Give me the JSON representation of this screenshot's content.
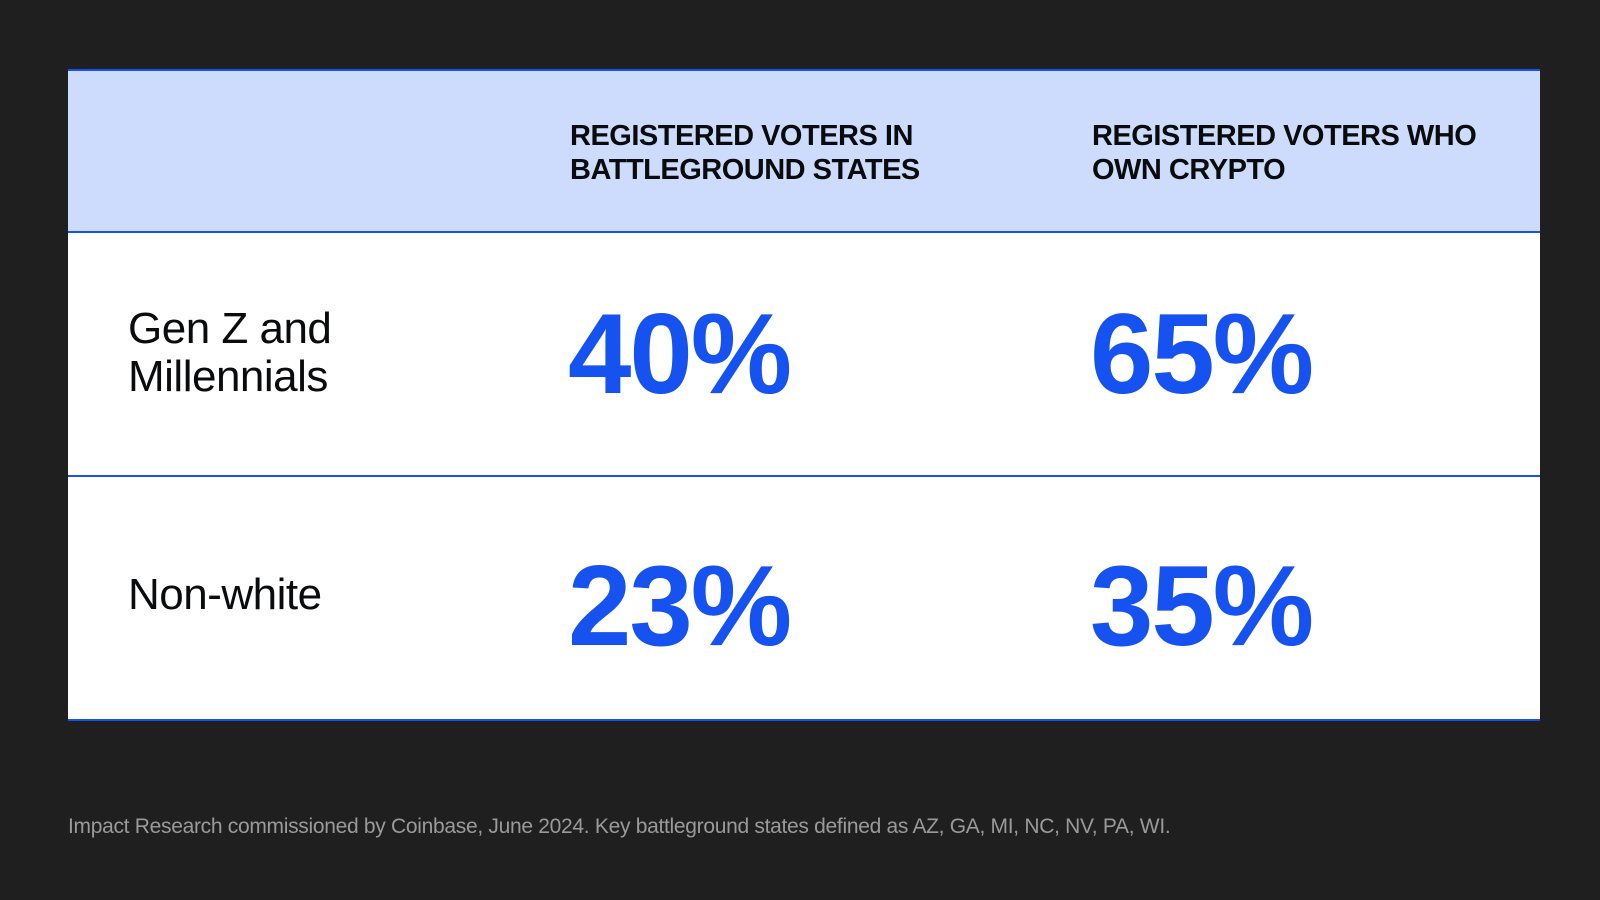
{
  "chart_data": {
    "type": "table",
    "columns": [
      "REGISTERED VOTERS IN BATTLEGROUND STATES",
      "REGISTERED VOTERS WHO OWN CRYPTO"
    ],
    "rows": [
      {
        "label": "Gen Z and Millennials",
        "values": [
          "40%",
          "65%"
        ]
      },
      {
        "label": "Non-white",
        "values": [
          "23%",
          "35%"
        ]
      }
    ],
    "footnote": "Impact Research commissioned by Coinbase, June 2024. Key battleground states defined as AZ, GA, MI, NC, NV, PA, WI."
  },
  "colors": {
    "background": "#201f1f",
    "header_bg": "#cddcfc",
    "accent_blue": "#1652f0",
    "text_dark": "#0a0b0d",
    "footnote_gray": "#9a9a9a"
  }
}
